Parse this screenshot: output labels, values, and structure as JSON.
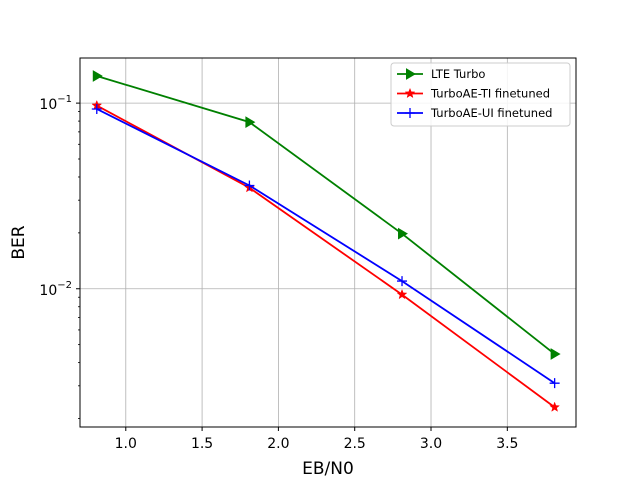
{
  "chart_data": {
    "type": "line",
    "title": "",
    "xlabel": "EB/N0",
    "ylabel": "BER",
    "xscale": "linear",
    "yscale": "log",
    "xlim": [
      0.7,
      3.95
    ],
    "ylim": [
      0.0018,
      0.175
    ],
    "grid": true,
    "legend_position": "upper right",
    "x_ticks": [
      1.0,
      1.5,
      2.0,
      2.5,
      3.0,
      3.5
    ],
    "x_tick_labels": [
      "1.0",
      "1.5",
      "2.0",
      "2.5",
      "3.0",
      "3.5"
    ],
    "y_ticks": [
      0.1,
      0.01
    ],
    "y_tick_labels": [
      {
        "base": "10",
        "exp": "−1"
      },
      {
        "base": "10",
        "exp": "−2"
      }
    ],
    "series": [
      {
        "name": "LTE Turbo",
        "color": "#008000",
        "marker": "triangle-right",
        "x": [
          0.81,
          1.81,
          2.81,
          3.81
        ],
        "y": [
          0.14,
          0.079,
          0.0198,
          0.00445
        ]
      },
      {
        "name": "TurboAE-TI finetuned",
        "color": "#ff0000",
        "marker": "star",
        "x": [
          0.81,
          1.81,
          2.81,
          3.81
        ],
        "y": [
          0.097,
          0.035,
          0.0093,
          0.0023
        ]
      },
      {
        "name": "TurboAE-UI finetuned",
        "color": "#0000ff",
        "marker": "plus",
        "x": [
          0.81,
          1.81,
          2.81,
          3.81
        ],
        "y": [
          0.093,
          0.036,
          0.011,
          0.0031
        ]
      }
    ]
  }
}
